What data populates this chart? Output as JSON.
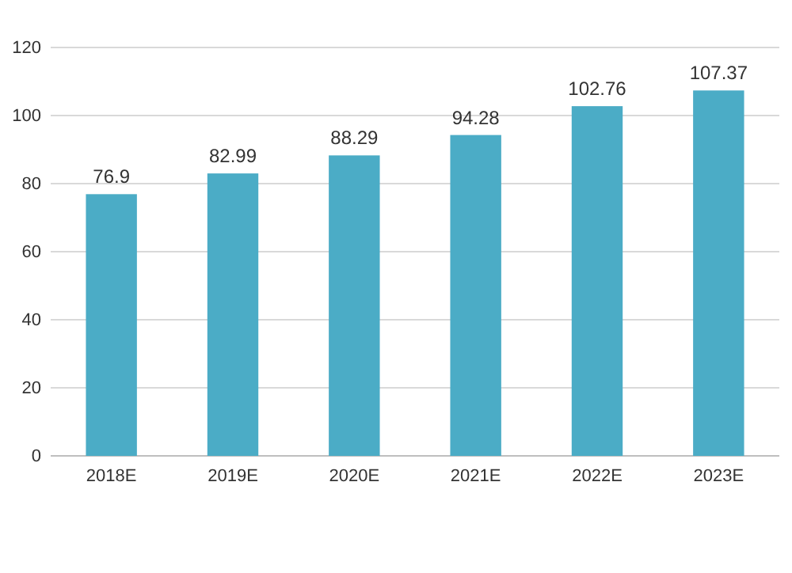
{
  "chart_data": {
    "type": "bar",
    "categories": [
      "2018E",
      "2019E",
      "2020E",
      "2021E",
      "2022E",
      "2023E"
    ],
    "values": [
      76.9,
      82.99,
      88.29,
      94.28,
      102.76,
      107.37
    ],
    "color": "#4bacc6",
    "data_labels": true,
    "ylim": [
      0,
      120
    ],
    "yticks": [
      0,
      20,
      40,
      60,
      80,
      100,
      120
    ],
    "grid": "y"
  }
}
